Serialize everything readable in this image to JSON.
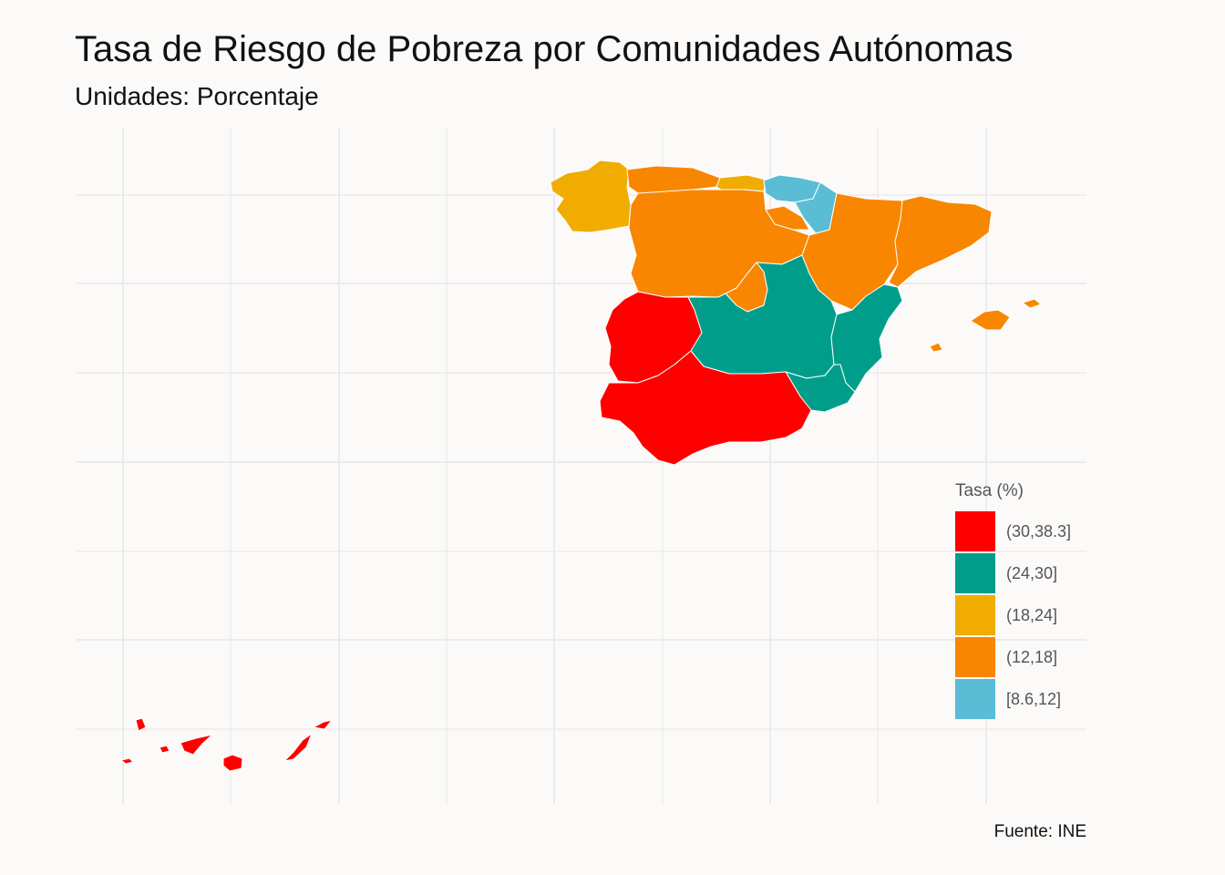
{
  "title": "Tasa de Riesgo de Pobreza por Comunidades Autónomas",
  "subtitle": "Unidades: Porcentaje",
  "caption": "Fuente: INE",
  "legend": {
    "title": "Tasa (%)",
    "items": [
      {
        "label": "(30,38.3]",
        "color": "#ff0000"
      },
      {
        "label": "(24,30]",
        "color": "#009e8a"
      },
      {
        "label": "(18,24]",
        "color": "#f0ad00"
      },
      {
        "label": "(12,18]",
        "color": "#f88600"
      },
      {
        "label": "[8.6,12]",
        "color": "#5bbcd6"
      }
    ]
  },
  "chart_data": {
    "type": "choropleth",
    "grid": true,
    "legend_position": "bottom-right",
    "classes": [
      "(30,38.3]",
      "(24,30]",
      "(18,24]",
      "(12,18]",
      "[8.6,12]"
    ]
  }
}
